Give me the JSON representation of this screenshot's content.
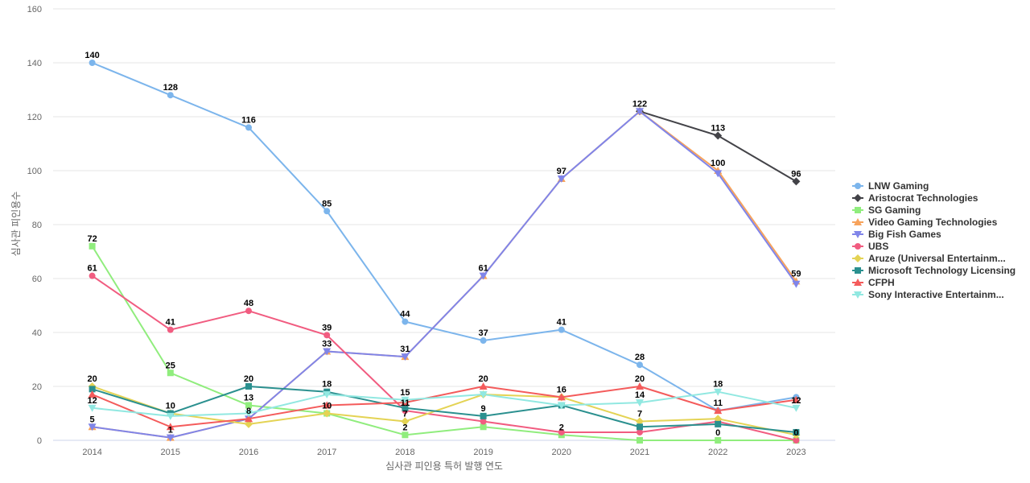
{
  "chart_data": {
    "type": "line",
    "xlabel": "심사관 피인용 특허 발행 연도",
    "ylabel": "심사관 피인용수",
    "ylim": [
      0,
      160
    ],
    "yticks": [
      0,
      20,
      40,
      60,
      80,
      100,
      120,
      140,
      160
    ],
    "grid": true,
    "legend_position": "right",
    "categories": [
      "2014",
      "2015",
      "2016",
      "2017",
      "2018",
      "2019",
      "2020",
      "2021",
      "2022",
      "2023"
    ],
    "series": [
      {
        "name": "LNW Gaming",
        "color": "#7cb5ec",
        "marker": "circle",
        "values": [
          140,
          128,
          116,
          85,
          44,
          37,
          41,
          28,
          11,
          16
        ],
        "labels": [
          true,
          true,
          true,
          true,
          true,
          true,
          true,
          true,
          false,
          false
        ]
      },
      {
        "name": "Aristocrat Technologies",
        "color": "#434348",
        "marker": "diamond",
        "values": [
          null,
          null,
          null,
          null,
          null,
          null,
          null,
          122,
          113,
          96
        ],
        "labels": [
          false,
          false,
          false,
          false,
          false,
          false,
          false,
          false,
          true,
          true
        ]
      },
      {
        "name": "SG Gaming",
        "color": "#90ed7d",
        "marker": "square",
        "values": [
          72,
          25,
          13,
          10,
          2,
          5,
          2,
          0,
          0,
          0
        ],
        "labels": [
          true,
          true,
          true,
          false,
          true,
          false,
          true,
          false,
          true,
          false
        ]
      },
      {
        "name": "Video Gaming Technologies",
        "color": "#f7a35c",
        "marker": "triangle",
        "values": [
          5,
          1,
          8,
          33,
          31,
          61,
          97,
          122,
          100,
          59
        ],
        "labels": [
          false,
          false,
          false,
          false,
          false,
          false,
          false,
          false,
          true,
          true
        ]
      },
      {
        "name": "Big Fish Games",
        "color": "#8085e9",
        "marker": "triangle-down",
        "values": [
          5,
          1,
          8,
          33,
          31,
          61,
          97,
          122,
          99,
          58
        ],
        "labels": [
          true,
          true,
          true,
          true,
          true,
          true,
          true,
          true,
          false,
          false
        ]
      },
      {
        "name": "UBS",
        "color": "#f15c80",
        "marker": "circle",
        "values": [
          61,
          41,
          48,
          39,
          11,
          7,
          3,
          3,
          7,
          0
        ],
        "labels": [
          true,
          true,
          true,
          true,
          true,
          false,
          false,
          false,
          false,
          true
        ]
      },
      {
        "name": "Aruze (Universal Entertainm...",
        "color": "#e4d354",
        "marker": "diamond",
        "values": [
          20,
          10,
          6,
          10,
          7,
          17,
          16,
          7,
          8,
          2
        ],
        "labels": [
          true,
          true,
          false,
          true,
          true,
          false,
          true,
          true,
          false,
          false
        ]
      },
      {
        "name": "Microsoft Technology Licensing",
        "color": "#2b908f",
        "marker": "square",
        "values": [
          19,
          10,
          20,
          18,
          12,
          9,
          13,
          5,
          6,
          3
        ],
        "labels": [
          false,
          false,
          true,
          true,
          false,
          true,
          false,
          false,
          false,
          false
        ]
      },
      {
        "name": "CFPH",
        "color": "#f45b5b",
        "marker": "triangle",
        "values": [
          17,
          5,
          8,
          13,
          14,
          20,
          16,
          20,
          11,
          15
        ],
        "labels": [
          false,
          false,
          false,
          false,
          false,
          true,
          false,
          true,
          true,
          false
        ]
      },
      {
        "name": "Sony Interactive Entertainm...",
        "color": "#91e8e1",
        "marker": "triangle-down",
        "values": [
          12,
          9,
          10,
          17,
          15,
          17,
          13,
          14,
          18,
          12
        ],
        "labels": [
          true,
          false,
          false,
          false,
          true,
          false,
          false,
          true,
          true,
          true
        ]
      }
    ]
  }
}
